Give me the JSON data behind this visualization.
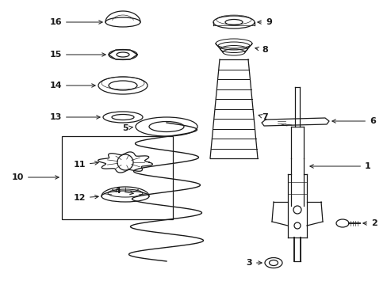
{
  "bg_color": "#ffffff",
  "line_color": "#1a1a1a",
  "label_fs": 8,
  "lw": 0.9
}
